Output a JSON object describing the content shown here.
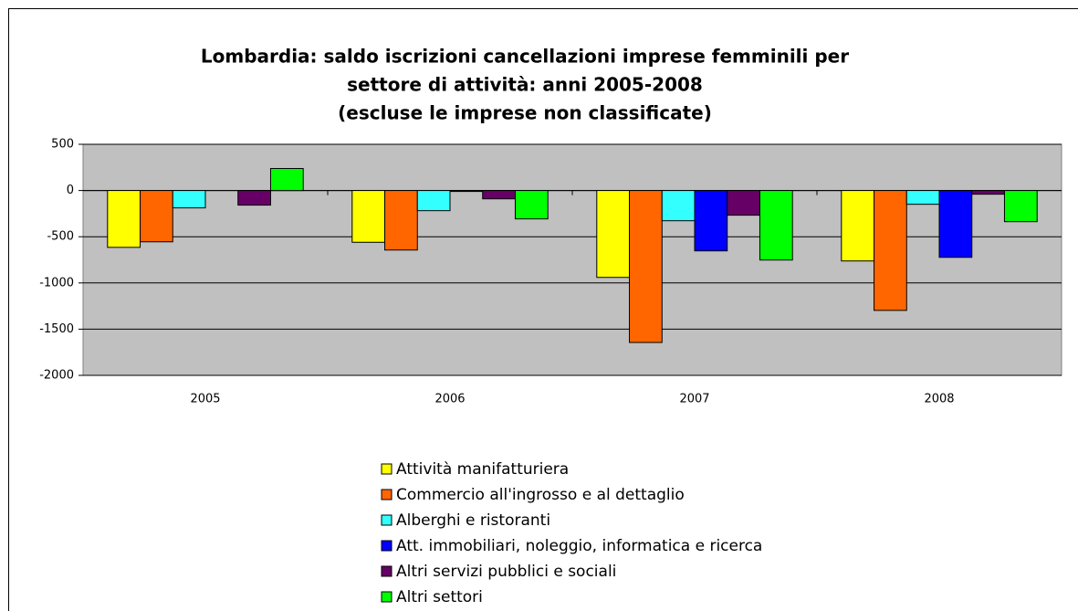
{
  "chart_data": {
    "type": "bar",
    "title": [
      "Lombardia: saldo iscrizioni cancellazioni imprese femminili per",
      "settore di attività: anni 2005-2008",
      "(escluse le imprese non classificate)"
    ],
    "categories": [
      "2005",
      "2006",
      "2007",
      "2008"
    ],
    "series": [
      {
        "name": "Attività manifatturiera",
        "color": "#ffff00",
        "values": [
          -615,
          -560,
          -940,
          -762
        ]
      },
      {
        "name": "Commercio all'ingrosso e al dettaglio",
        "color": "#ff6600",
        "values": [
          -555,
          -644,
          -1644,
          -1297
        ]
      },
      {
        "name": "Alberghi e ristoranti",
        "color": "#33ffff",
        "values": [
          -188,
          -218,
          -327,
          -149
        ]
      },
      {
        "name": "Att. immobiliari, noleggio, informatica e ricerca",
        "color": "#0000ff",
        "values": [
          0,
          -10,
          -653,
          -723
        ]
      },
      {
        "name": "Altri servizi pubblici e sociali",
        "color": "#660066",
        "values": [
          -158,
          -90,
          -267,
          -40
        ]
      },
      {
        "name": "Altri settori",
        "color": "#00ff00",
        "values": [
          238,
          -307,
          -752,
          -337
        ]
      }
    ],
    "ylim": [
      -2000,
      500
    ],
    "yticks": [
      -2000,
      -1500,
      -1000,
      -500,
      0,
      500
    ],
    "grid": true
  }
}
